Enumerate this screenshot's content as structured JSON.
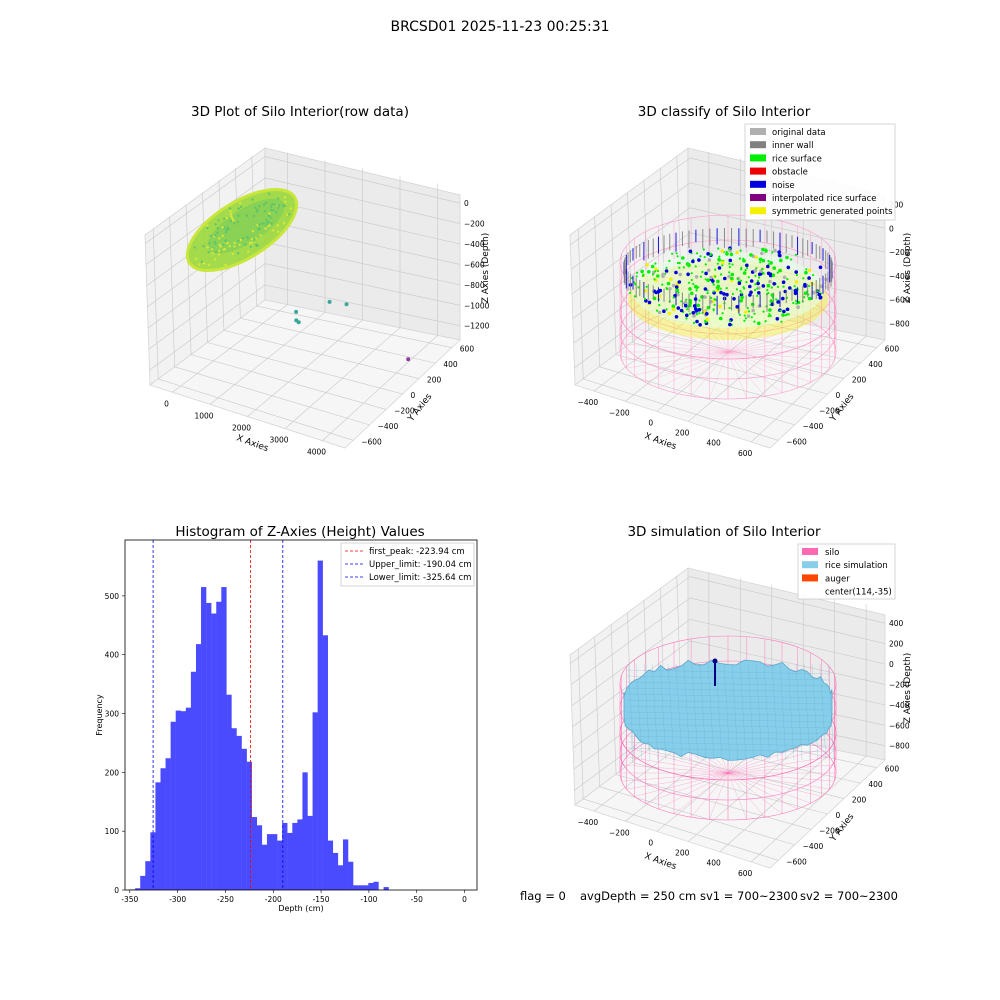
{
  "figure": {
    "suptitle": "BRCSD01 2025-11-23 00:25:31",
    "footer": {
      "flag": "flag = 0",
      "avg_depth": "avgDepth = 250 cm",
      "sv1": "sv1 = 700~2300",
      "sv2": "sv2 = 700~2300"
    }
  },
  "chart_data": [
    {
      "type": "scatter",
      "title": "3D Plot of Silo Interior(row data)",
      "xlabel": "X Axies",
      "ylabel": "Y Axies",
      "zlabel": "Z Axies (Depth)",
      "x_ticks": [
        "0",
        "1000",
        "2000",
        "3000",
        "4000"
      ],
      "y_ticks": [
        "−600",
        "−400",
        "−200",
        "0",
        "200",
        "400",
        "600"
      ],
      "z_ticks": [
        "0",
        "−200",
        "−400",
        "−600",
        "−800",
        "−1000",
        "−1200"
      ],
      "colors": {
        "surface": "#9bd83a",
        "outlier": "#3aa79a",
        "far": "#8e3aa0"
      },
      "outliers": [
        {
          "x": 1500,
          "y": 150,
          "z": -1050
        },
        {
          "x": 1600,
          "y": 100,
          "z": -1080
        },
        {
          "x": 1620,
          "y": 120,
          "z": -1110
        },
        {
          "x": 2000,
          "y": 300,
          "z": -1000
        },
        {
          "x": 2300,
          "y": 350,
          "z": -1020
        },
        {
          "x": 3950,
          "y": 250,
          "z": -1250
        }
      ]
    },
    {
      "type": "scatter",
      "title": "3D classify of Silo Interior",
      "xlabel": "X Axies",
      "ylabel": "Y Axies",
      "zlabel": "Z Axies (Depth)",
      "x_ticks": [
        "−400",
        "−200",
        "0",
        "200",
        "400",
        "600"
      ],
      "y_ticks": [
        "−600",
        "−400",
        "−200",
        "0",
        "200",
        "400",
        "600"
      ],
      "z_ticks": [
        "200",
        "0",
        "−200",
        "−400",
        "−600",
        "−800"
      ],
      "legend": [
        {
          "label": "original data",
          "color": "#b0b0b0"
        },
        {
          "label": "inner wall",
          "color": "#808080"
        },
        {
          "label": "rice surface",
          "color": "#00ee00"
        },
        {
          "label": "obstacle",
          "color": "#ee0000"
        },
        {
          "label": "noise",
          "color": "#0000dd"
        },
        {
          "label": "interpolated rice surface",
          "color": "#800080"
        },
        {
          "label": "symmetric generated points",
          "color": "#f5f000"
        }
      ],
      "silo_color": "#ff8ec4"
    },
    {
      "type": "bar",
      "title": "Histogram of Z-Axies (Height) Values",
      "xlabel": "Depth (cm)",
      "ylabel": "Frequency",
      "xlim": [
        -355,
        13
      ],
      "ylim": [
        0,
        595
      ],
      "x_ticks": [
        -350,
        -300,
        -250,
        -200,
        -150,
        -100,
        -50,
        0
      ],
      "y_ticks": [
        0,
        100,
        200,
        300,
        400,
        500
      ],
      "bin_start": -355,
      "bin_width": 5.3,
      "values": [
        0,
        1,
        3,
        24,
        49,
        98,
        183,
        207,
        224,
        286,
        305,
        304,
        310,
        371,
        418,
        515,
        488,
        470,
        490,
        515,
        332,
        275,
        262,
        240,
        218,
        124,
        110,
        77,
        95,
        95,
        84,
        114,
        97,
        114,
        120,
        200,
        126,
        302,
        560,
        433,
        84,
        63,
        42,
        86,
        48,
        8,
        8,
        8,
        12,
        14,
        0,
        5
      ],
      "bar_color": "#4a4aff",
      "lines": [
        {
          "label": "first_peak: -223.94 cm",
          "value": -223.94,
          "color": "#ff0000"
        },
        {
          "label": "Upper_limit: -190.04 cm",
          "value": -190.04,
          "color": "#0000ee"
        },
        {
          "label": "Lower_limit: -325.64 cm",
          "value": -325.64,
          "color": "#0000ee"
        }
      ]
    },
    {
      "type": "area",
      "title": "3D simulation of Silo Interior",
      "xlabel": "X Axies",
      "ylabel": "Y Axies",
      "zlabel": "Z Axies (Depth)",
      "x_ticks": [
        "−400",
        "−200",
        "0",
        "200",
        "400",
        "600"
      ],
      "y_ticks": [
        "−600",
        "−400",
        "−200",
        "0",
        "200",
        "400",
        "600"
      ],
      "z_ticks": [
        "400",
        "200",
        "0",
        "−200",
        "−400",
        "−600",
        "−800"
      ],
      "legend": [
        {
          "label": "silo",
          "color": "#ff69b4"
        },
        {
          "label": "rice simulation",
          "color": "#87ceeb"
        },
        {
          "label": "auger",
          "color": "#ff4500"
        },
        {
          "label": "center(114,-35)",
          "color": ""
        }
      ]
    }
  ]
}
